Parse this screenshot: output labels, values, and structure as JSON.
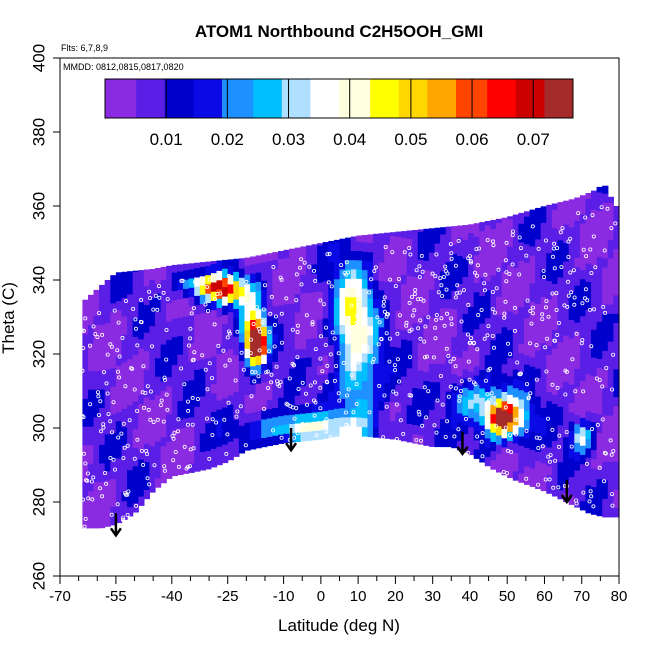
{
  "chart_data": {
    "type": "heatmap",
    "title": "ATOM1 Northbound C2H5OOH_GMI",
    "annotations": [
      "Flts: 6,7,8,9",
      "MMDD: 0812,0815,0817,0820"
    ],
    "xlabel": "Latitude (deg N)",
    "ylabel": "Theta (C)",
    "xlim": [
      -70,
      80
    ],
    "ylim": [
      260,
      400
    ],
    "x_ticks_major": [
      -70,
      -55,
      -40,
      -25,
      -10,
      0,
      10,
      20,
      30,
      40,
      50,
      60,
      70,
      80
    ],
    "x_ticks_minor": [
      -65,
      -60,
      -50,
      -45,
      -35,
      -30,
      -20,
      -15,
      -5,
      5,
      15,
      25,
      35,
      45,
      55,
      65,
      75
    ],
    "x_tick_labels": [
      "-70",
      "-55",
      "-40",
      "-25",
      "-10",
      "0",
      "10",
      "20",
      "30",
      "40",
      "50",
      "60",
      "70",
      "80"
    ],
    "y_ticks": [
      260,
      280,
      300,
      320,
      340,
      360,
      380,
      400
    ],
    "y_tick_labels": [
      "260",
      "280",
      "300",
      "320",
      "340",
      "360",
      "380",
      "400"
    ],
    "colorbar": {
      "min": 0.0,
      "max": 0.0765,
      "ticks": [
        0.01,
        0.02,
        0.03,
        0.04,
        0.05,
        0.06,
        0.07
      ],
      "tick_labels": [
        "0.01",
        "0.02",
        "0.03",
        "0.04",
        "0.05",
        "0.06",
        "0.07"
      ],
      "colors": [
        "#8a2be2",
        "#5a1ee6",
        "#0000cd",
        "#0a0ae6",
        "#1e90ff",
        "#00bfff",
        "#b0e0ff",
        "#ffffff",
        "#ffffe0",
        "#ffff00",
        "#ffd700",
        "#ffa500",
        "#ff4500",
        "#ff0000",
        "#cd0000",
        "#a52a2a"
      ]
    },
    "coverage_top": [
      [
        -64,
        334
      ],
      [
        -55,
        342
      ],
      [
        -45,
        343
      ],
      [
        -40,
        344
      ],
      [
        -30,
        345
      ],
      [
        -20,
        346
      ],
      [
        -15,
        347
      ],
      [
        -10,
        348
      ],
      [
        -5,
        349
      ],
      [
        0,
        350
      ],
      [
        10,
        352
      ],
      [
        20,
        353
      ],
      [
        30,
        354
      ],
      [
        40,
        355
      ],
      [
        50,
        357
      ],
      [
        60,
        360
      ],
      [
        68,
        362
      ],
      [
        73,
        364
      ],
      [
        76,
        366
      ],
      [
        79,
        360
      ]
    ],
    "coverage_bottom": [
      [
        79,
        276
      ],
      [
        76,
        276
      ],
      [
        72,
        277
      ],
      [
        68,
        279
      ],
      [
        60,
        283
      ],
      [
        52,
        286
      ],
      [
        46,
        289
      ],
      [
        40,
        293
      ],
      [
        35,
        295
      ],
      [
        30,
        295
      ],
      [
        20,
        297
      ],
      [
        10,
        298
      ],
      [
        5,
        298
      ],
      [
        0,
        297
      ],
      [
        -10,
        296
      ],
      [
        -20,
        294
      ],
      [
        -25,
        291
      ],
      [
        -30,
        289
      ],
      [
        -35,
        288
      ],
      [
        -40,
        287
      ],
      [
        -45,
        283
      ],
      [
        -50,
        277
      ],
      [
        -55,
        274
      ],
      [
        -59,
        273
      ],
      [
        -64,
        273
      ]
    ],
    "series": [
      {
        "name": "",
        "blobs": [
          {
            "lat": -25,
            "theta": 337,
            "dlat": 6,
            "dtheta": 3.5,
            "value": 0.05
          },
          {
            "lat": -18,
            "theta": 325,
            "dlat": 3,
            "dtheta": 8,
            "value": 0.055
          },
          {
            "lat": -17,
            "theta": 323,
            "dlat": 2,
            "dtheta": 4,
            "value": 0.072
          },
          {
            "lat": -31,
            "theta": 339,
            "dlat": 7,
            "dtheta": 3,
            "value": 0.033
          },
          {
            "lat": 49,
            "theta": 303,
            "dlat": 4,
            "dtheta": 4,
            "value": 0.052
          },
          {
            "lat": 49,
            "theta": 303,
            "dlat": 7,
            "dtheta": 7,
            "value": 0.03
          },
          {
            "lat": 10,
            "theta": 315,
            "dlat": 6,
            "dtheta": 25,
            "value": 0.025
          },
          {
            "lat": -5,
            "theta": 300,
            "dlat": 14,
            "dtheta": 4,
            "value": 0.03
          },
          {
            "lat": 8,
            "theta": 332,
            "dlat": 5,
            "dtheta": 12,
            "value": 0.022
          },
          {
            "lat": 70,
            "theta": 298,
            "dlat": 3,
            "dtheta": 4,
            "value": 0.028
          },
          {
            "lat": 40,
            "theta": 308,
            "dlat": 6,
            "dtheta": 6,
            "value": 0.02
          }
        ]
      }
    ],
    "arrows": [
      {
        "lat": -55,
        "theta_top": 277,
        "theta_tip": 271
      },
      {
        "lat": -8,
        "theta_top": 300,
        "theta_tip": 294
      },
      {
        "lat": 38,
        "theta_top": 299,
        "theta_tip": 293
      },
      {
        "lat": 66,
        "theta_top": 286,
        "theta_tip": 280
      }
    ]
  }
}
